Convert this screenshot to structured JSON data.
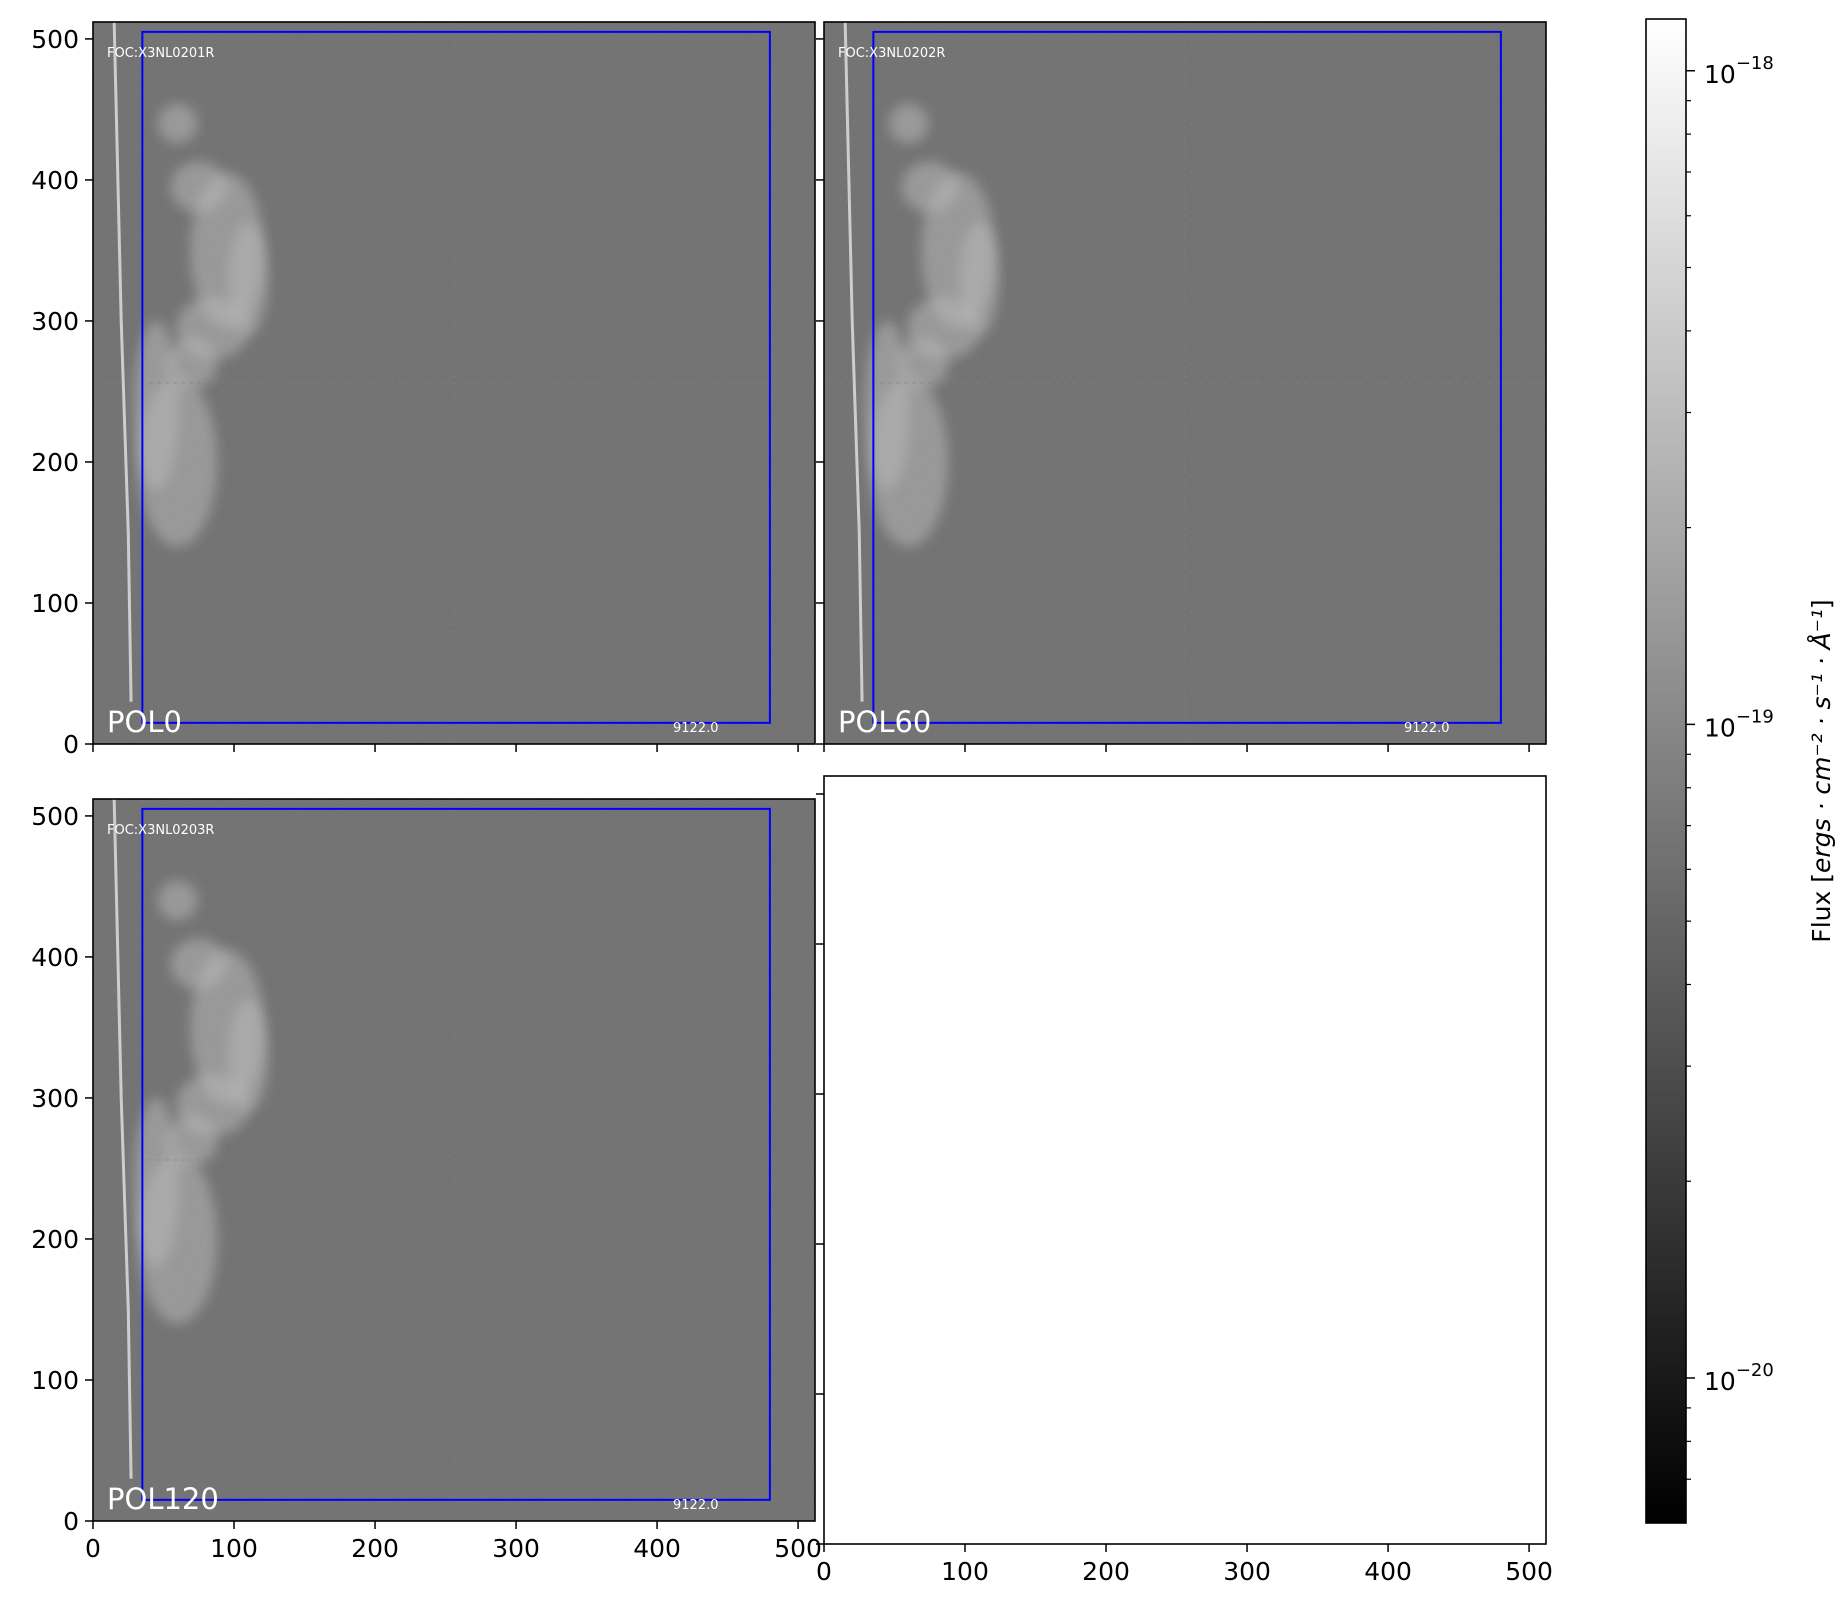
{
  "panels": [
    {
      "id": "pol0",
      "label": "POL0",
      "header": "FOC:X3NL0201R",
      "wavelength": "9122.0",
      "x_ticks": [],
      "y_ticks": [
        "500",
        "400",
        "300",
        "200",
        "100",
        "0"
      ],
      "has_image": true
    },
    {
      "id": "pol60",
      "label": "POL60",
      "header": "FOC:X3NL0202R",
      "wavelength": "9122.0",
      "x_ticks": [],
      "y_ticks": [],
      "has_image": true
    },
    {
      "id": "pol120",
      "label": "POL120",
      "header": "FOC:X3NL0203R",
      "wavelength": "9122.0",
      "x_ticks": [
        "0",
        "100",
        "200",
        "300",
        "400",
        "500"
      ],
      "y_ticks": [
        "500",
        "400",
        "300",
        "200",
        "100",
        "0"
      ],
      "has_image": true
    },
    {
      "id": "empty",
      "label": "",
      "header": "",
      "wavelength": "",
      "x_ticks": [
        "0",
        "100",
        "200",
        "300",
        "400",
        "500"
      ],
      "y_ticks": [],
      "has_image": false
    }
  ],
  "image_grid": {
    "x_range": [
      0,
      512
    ],
    "y_range": [
      0,
      512
    ],
    "tick_step": 100,
    "box": {
      "x0": 35,
      "y0": 15,
      "x1": 480,
      "y1": 505
    },
    "box_color": "#0000ff",
    "background_color": "#707070"
  },
  "colorbar": {
    "label_prefix": "Flux [",
    "label_math": "ergs · cm⁻² · s⁻¹ · Å⁻¹",
    "label_suffix": "]",
    "scale": "log",
    "range": [
      6e-21,
      1.2e-18
    ],
    "major_ticks": [
      {
        "value": 1e-18,
        "base": "10",
        "exp": "−18"
      },
      {
        "value": 1e-19,
        "base": "10",
        "exp": "−19"
      },
      {
        "value": 1e-20,
        "base": "10",
        "exp": "−20"
      }
    ],
    "colormap": "gray",
    "top_color": "#ffffff",
    "bottom_color": "#000000"
  }
}
